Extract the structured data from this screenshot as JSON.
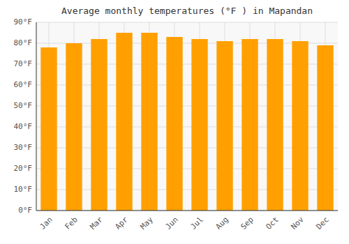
{
  "chart_data": {
    "type": "bar",
    "title": "Average monthly temperatures (°F ) in Mapandan",
    "categories": [
      "Jan",
      "Feb",
      "Mar",
      "Apr",
      "May",
      "Jun",
      "Jul",
      "Aug",
      "Sep",
      "Oct",
      "Nov",
      "Dec"
    ],
    "values": [
      78,
      80,
      82,
      85,
      85,
      83,
      82,
      81,
      82,
      82,
      81,
      79
    ],
    "color": "#FFA000",
    "ylim": [
      0,
      90
    ],
    "yticks": [
      {
        "value": 0,
        "label": "0°F"
      },
      {
        "value": 10,
        "label": "10°F"
      },
      {
        "value": 20,
        "label": "20°F"
      },
      {
        "value": 30,
        "label": "30°F"
      },
      {
        "value": 40,
        "label": "40°F"
      },
      {
        "value": 50,
        "label": "50°F"
      },
      {
        "value": 60,
        "label": "60°F"
      },
      {
        "value": 70,
        "label": "70°F"
      },
      {
        "value": 80,
        "label": "80°F"
      },
      {
        "value": 90,
        "label": "90°F"
      }
    ],
    "grid": true
  }
}
